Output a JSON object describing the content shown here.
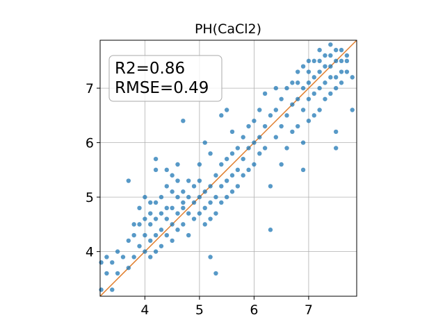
{
  "chart_data": {
    "type": "scatter",
    "title": "PH(CaCl2)",
    "xlabel": "",
    "ylabel": "",
    "xlim": [
      3.18,
      7.88
    ],
    "ylim": [
      3.18,
      7.88
    ],
    "xticks": [
      4,
      5,
      6,
      7
    ],
    "yticks": [
      4,
      5,
      6,
      7
    ],
    "grid": true,
    "annotation": {
      "r2": "R2=0.86",
      "rmse": "RMSE=0.49",
      "placement": "top-left"
    },
    "reference_line": {
      "type": "identity",
      "from": [
        3.18,
        3.18
      ],
      "to": [
        7.88,
        7.88
      ]
    },
    "series": [
      {
        "marker_color": "#1f77b4",
        "x": [
          3.2,
          3.2,
          3.3,
          3.3,
          3.4,
          3.4,
          3.5,
          3.5,
          3.6,
          3.7,
          3.7,
          3.8,
          3.8,
          3.8,
          3.9,
          3.9,
          4.0,
          4.0,
          4.0,
          4.0,
          4.1,
          4.1,
          4.1,
          4.1,
          4.1,
          4.2,
          4.2,
          4.2,
          4.2,
          4.2,
          4.3,
          4.3,
          4.3,
          4.3,
          4.4,
          4.4,
          4.4,
          4.4,
          4.4,
          4.5,
          4.5,
          4.5,
          4.5,
          4.5,
          4.6,
          4.6,
          4.6,
          4.6,
          4.7,
          4.7,
          4.7,
          4.7,
          4.8,
          4.8,
          4.8,
          4.8,
          4.9,
          4.9,
          4.9,
          5.0,
          5.0,
          5.0,
          5.0,
          5.1,
          5.1,
          5.1,
          5.1,
          5.2,
          5.2,
          5.2,
          5.2,
          5.3,
          5.3,
          5.3,
          5.4,
          5.4,
          5.4,
          5.4,
          5.5,
          5.5,
          5.5,
          5.5,
          5.6,
          5.6,
          5.6,
          5.6,
          5.7,
          5.7,
          5.7,
          5.8,
          5.8,
          5.8,
          5.9,
          5.9,
          5.9,
          6.0,
          6.0,
          6.0,
          6.1,
          6.1,
          6.1,
          6.2,
          6.2,
          6.2,
          6.3,
          6.3,
          6.4,
          6.4,
          6.4,
          6.5,
          6.5,
          6.5,
          6.6,
          6.6,
          6.6,
          6.7,
          6.7,
          6.7,
          6.8,
          6.8,
          6.8,
          6.8,
          6.9,
          6.9,
          6.9,
          6.9,
          7.0,
          7.0,
          7.0,
          7.0,
          7.0,
          7.1,
          7.1,
          7.1,
          7.1,
          7.2,
          7.2,
          7.2,
          7.2,
          7.2,
          7.3,
          7.3,
          7.3,
          7.3,
          7.4,
          7.4,
          7.4,
          7.4,
          7.4,
          7.5,
          7.5,
          7.5,
          7.5,
          7.5,
          7.6,
          7.6,
          7.6,
          7.6,
          7.7,
          7.7,
          7.7,
          7.8,
          5.3,
          4.7,
          3.7,
          6.9,
          7.5,
          7.8,
          6.3,
          5.2,
          4.6,
          4.2,
          3.9
        ],
        "y": [
          3.3,
          3.8,
          3.6,
          3.9,
          3.3,
          3.8,
          3.6,
          4.0,
          3.9,
          3.7,
          4.2,
          4.5,
          3.9,
          4.3,
          4.1,
          4.5,
          4.0,
          4.3,
          4.6,
          5.0,
          3.9,
          4.2,
          4.5,
          4.7,
          4.9,
          4.0,
          4.3,
          4.6,
          4.9,
          5.5,
          4.1,
          4.4,
          4.7,
          5.0,
          4.3,
          4.6,
          4.8,
          5.2,
          5.5,
          4.2,
          4.5,
          4.8,
          5.1,
          5.4,
          4.4,
          4.7,
          5.0,
          5.3,
          4.5,
          4.8,
          5.1,
          6.4,
          4.3,
          4.7,
          5.0,
          5.3,
          4.6,
          4.9,
          5.2,
          4.7,
          5.0,
          5.3,
          5.6,
          4.5,
          4.8,
          5.1,
          6.0,
          4.6,
          4.9,
          5.2,
          5.8,
          4.7,
          5.0,
          5.4,
          4.9,
          5.2,
          5.6,
          6.5,
          5.0,
          5.3,
          5.7,
          6.6,
          5.1,
          5.4,
          5.8,
          6.2,
          5.2,
          5.5,
          5.9,
          5.4,
          5.7,
          6.1,
          5.5,
          5.9,
          6.3,
          5.6,
          6.0,
          6.4,
          5.8,
          6.1,
          6.6,
          5.9,
          6.3,
          6.9,
          5.2,
          6.5,
          6.1,
          6.6,
          7.0,
          5.6,
          6.3,
          6.8,
          5.9,
          6.5,
          7.0,
          6.2,
          6.7,
          7.1,
          6.3,
          6.8,
          7.1,
          7.3,
          6.0,
          6.6,
          7.0,
          7.4,
          6.4,
          6.8,
          7.1,
          7.3,
          7.5,
          6.5,
          6.9,
          7.2,
          7.5,
          6.6,
          7.0,
          7.3,
          7.5,
          7.7,
          6.8,
          7.1,
          7.4,
          7.6,
          6.9,
          7.2,
          7.4,
          7.6,
          7.8,
          7.0,
          7.2,
          7.5,
          7.7,
          6.2,
          7.1,
          7.3,
          7.5,
          7.7,
          7.3,
          7.5,
          7.6,
          6.6,
          3.6,
          4.9,
          5.3,
          5.5,
          5.9,
          7.2,
          4.4,
          3.9,
          5.6,
          5.7,
          4.8
        ]
      }
    ]
  }
}
